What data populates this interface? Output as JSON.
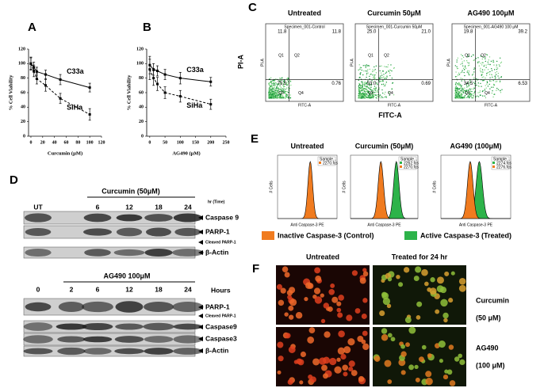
{
  "chart_data": [
    {
      "type": "line",
      "label": "A",
      "x_label": "Curcumin (µM)",
      "y_label": "% Cell Viability",
      "x": [
        0,
        5,
        10,
        25,
        50,
        100
      ],
      "xlim": [
        -4,
        120
      ],
      "xticks": [
        0,
        20,
        40,
        60,
        80,
        100,
        120
      ],
      "ylim": [
        0,
        120
      ],
      "yticks": [
        0,
        20,
        40,
        60,
        80,
        100,
        120
      ],
      "series": [
        {
          "name": "C33a",
          "color": "#000000",
          "line_style": "solid",
          "values": [
            100,
            95,
            89,
            85,
            78,
            67
          ],
          "errors": [
            8,
            7,
            6,
            6,
            7,
            6
          ]
        },
        {
          "name": "SiHa",
          "color": "#000000",
          "line_style": "dashed",
          "values": [
            100,
            90,
            79,
            70,
            52,
            30
          ],
          "errors": [
            9,
            8,
            7,
            8,
            7,
            8
          ]
        }
      ]
    },
    {
      "type": "line",
      "label": "B",
      "x_label": "AG490 (µM)",
      "y_label": "% Cell Viability",
      "x": [
        0,
        12.5,
        25,
        50,
        100,
        200
      ],
      "xlim": [
        -10,
        250
      ],
      "xticks": [
        0,
        50,
        100,
        150,
        200,
        250
      ],
      "ylim": [
        0,
        120
      ],
      "yticks": [
        0,
        20,
        40,
        60,
        80,
        100,
        120
      ],
      "series": [
        {
          "name": "C33a",
          "color": "#000000",
          "line_style": "solid",
          "values": [
            98,
            92,
            90,
            85,
            80,
            75
          ],
          "errors": [
            12,
            8,
            7,
            7,
            8,
            6
          ]
        },
        {
          "name": "SiHa",
          "color": "#000000",
          "line_style": "dashed",
          "values": [
            92,
            80,
            72,
            60,
            55,
            44
          ],
          "errors": [
            14,
            10,
            9,
            8,
            8,
            7
          ]
        }
      ]
    }
  ],
  "panel_c": {
    "label": "C",
    "y_label": "PI-A",
    "x_label": "FITC-A",
    "quadrant_names": [
      "Q1",
      "Q2",
      "Q3",
      "Q4"
    ],
    "plots": [
      {
        "title": "Untreated",
        "specimen": "Specimen_001-Control",
        "quadrants": [
          "11.8",
          "11.8",
          "75.5",
          "0.76"
        ]
      },
      {
        "title": "Curcumin 50μM",
        "specimen": "Specimen_001-Curcumin 50μM",
        "quadrants": [
          "25.0",
          "21.0",
          "53.0",
          "0.69"
        ]
      },
      {
        "title": "AG490 100μM",
        "specimen": "Specimen_001-AG490 100 μM",
        "quadrants": [
          "19.8",
          "39.2",
          "34.5",
          "6.53"
        ]
      }
    ]
  },
  "panel_d": {
    "label": "D",
    "top": {
      "treatment": "Curcumin (50μM)",
      "time_unit": "hr (Time)",
      "lanes": [
        "UT",
        "6",
        "12",
        "18",
        "24"
      ],
      "rows": [
        "Caspase 9",
        "PARP-1",
        "Cleaved PARP-1",
        "β-Actin"
      ]
    },
    "bottom": {
      "treatment": "AG490 100μM",
      "time_unit": "Hours",
      "lanes": [
        "0",
        "2",
        "6",
        "12",
        "18",
        "24"
      ],
      "rows": [
        "PARP-1",
        "Cleaved PARP-1",
        "Caspase9",
        "Caspase3",
        "β-Actin"
      ]
    }
  },
  "panel_e": {
    "label": "E",
    "y_label": "# Cells",
    "x_label": "Anti Caspase-3 PE",
    "plots": [
      {
        "title": "Untreated",
        "legend_title": "Sample...",
        "legend_entries": [
          "2270.fcs"
        ]
      },
      {
        "title": "Curcumin (50μM)",
        "legend_title": "Sample...",
        "legend_entries": [
          "2262.fcs",
          "2270.fcs"
        ]
      },
      {
        "title": "AG490 (100μM)",
        "legend_title": "Sample...",
        "legend_entries": [
          "2274.fcs",
          "2276.fcs"
        ]
      }
    ],
    "legend": [
      "Inactive Caspase-3 (Control)",
      "Active Caspase-3 (Treated)"
    ]
  },
  "panel_f": {
    "label": "F",
    "columns": [
      "Untreated",
      "Treated for 24 hr"
    ],
    "rows": [
      {
        "name": "Curcumin",
        "dose": "(50 μM)"
      },
      {
        "name": "AG490",
        "dose": "(100 μM)"
      }
    ]
  }
}
